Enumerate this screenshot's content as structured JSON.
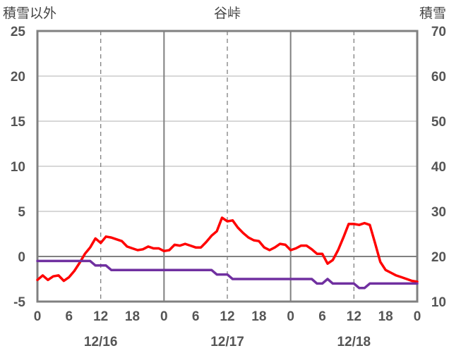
{
  "chart_data": {
    "type": "line",
    "title": "谷峠",
    "y_left_label": "積雪以外",
    "y_right_label": "積雪",
    "y_left_ticks": [
      "-5",
      "0",
      "5",
      "10",
      "15",
      "20",
      "25"
    ],
    "y_right_ticks": [
      "10",
      "20",
      "30",
      "40",
      "50",
      "60",
      "70"
    ],
    "y_left_range": [
      -5,
      25
    ],
    "y_right_range": [
      10,
      70
    ],
    "x_range_hours": [
      0,
      72
    ],
    "x_tick_labels": [
      "0",
      "6",
      "12",
      "18",
      "0",
      "6",
      "12",
      "18",
      "0",
      "6",
      "12",
      "18",
      "0"
    ],
    "date_labels": [
      "12/16",
      "12/17",
      "12/18"
    ],
    "grid": {
      "solid_vertical_at_hours": [
        24,
        48
      ],
      "dashed_vertical_at_hours": [
        12,
        36,
        60
      ],
      "zero_line": true
    },
    "series": [
      {
        "axis": "left",
        "color": "#ff0000",
        "x": [
          0,
          1,
          2,
          3,
          4,
          5,
          6,
          7,
          8,
          9,
          10,
          11,
          12,
          13,
          14,
          15,
          16,
          17,
          18,
          19,
          20,
          21,
          22,
          23,
          24,
          25,
          26,
          27,
          28,
          29,
          30,
          31,
          32,
          33,
          34,
          35,
          36,
          37,
          38,
          39,
          40,
          41,
          42,
          43,
          44,
          45,
          46,
          47,
          48,
          49,
          50,
          51,
          52,
          53,
          54,
          55,
          56,
          57,
          58,
          59,
          60,
          61,
          62,
          63,
          64,
          65,
          66,
          67,
          68,
          69,
          70,
          71,
          72
        ],
        "y": [
          -2.6,
          -2.1,
          -2.6,
          -2.2,
          -2.1,
          -2.7,
          -2.3,
          -1.6,
          -0.7,
          0.3,
          1.0,
          2.0,
          1.5,
          2.2,
          2.1,
          1.9,
          1.7,
          1.1,
          0.9,
          0.7,
          0.8,
          1.1,
          0.9,
          0.9,
          0.6,
          0.7,
          1.3,
          1.2,
          1.4,
          1.2,
          1.0,
          1.0,
          1.6,
          2.3,
          2.8,
          4.3,
          3.9,
          4.0,
          3.2,
          2.6,
          2.1,
          1.8,
          1.7,
          1.0,
          0.7,
          1.0,
          1.4,
          1.3,
          0.7,
          0.9,
          1.2,
          1.2,
          0.8,
          0.3,
          0.3,
          -0.8,
          -0.4,
          0.7,
          2.1,
          3.6,
          3.6,
          3.5,
          3.7,
          3.5,
          1.5,
          -0.6,
          -1.5,
          -1.8,
          -2.1,
          -2.3,
          -2.5,
          -2.7,
          -2.8
        ]
      },
      {
        "axis": "left",
        "color": "#7030a0",
        "x": [
          0,
          10,
          11,
          13,
          14,
          24,
          30,
          33,
          34,
          36,
          37,
          47,
          48,
          52,
          53,
          54,
          55,
          56,
          57,
          60,
          61,
          62,
          63,
          72
        ],
        "y": [
          -0.5,
          -0.5,
          -1.0,
          -1.0,
          -1.5,
          -1.5,
          -1.5,
          -1.5,
          -2.0,
          -2.0,
          -2.5,
          -2.5,
          -2.5,
          -2.5,
          -3.0,
          -3.0,
          -2.5,
          -3.0,
          -3.0,
          -3.0,
          -3.5,
          -3.5,
          -3.0,
          -3.0
        ]
      }
    ]
  }
}
